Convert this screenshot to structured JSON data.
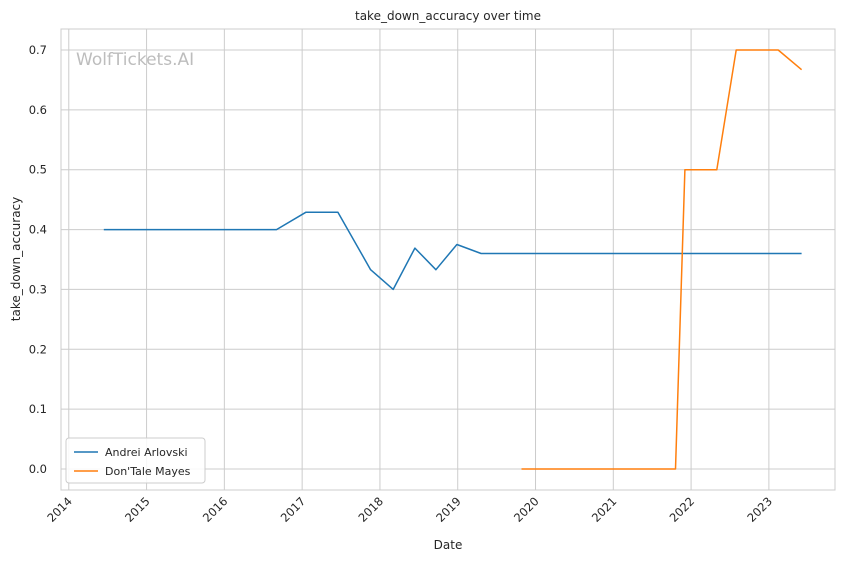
{
  "watermark": "WolfTickets.AI",
  "chart_data": {
    "type": "line",
    "title": "take_down_accuracy over time",
    "xlabel": "Date",
    "ylabel": "take_down_accuracy",
    "xlim": [
      2013.9,
      2023.85
    ],
    "ylim": [
      -0.035,
      0.735
    ],
    "x_ticks": [
      "2014",
      "2015",
      "2016",
      "2017",
      "2018",
      "2019",
      "2020",
      "2021",
      "2022",
      "2023"
    ],
    "y_ticks": [
      "0.0",
      "0.1",
      "0.2",
      "0.3",
      "0.4",
      "0.5",
      "0.6",
      "0.7"
    ],
    "grid": true,
    "legend_position": "lower-left",
    "series": [
      {
        "name": "Andrei Arlovski",
        "color": "#1f77b4",
        "points": [
          [
            2014.45,
            0.4
          ],
          [
            2016.67,
            0.4
          ],
          [
            2017.05,
            0.429
          ],
          [
            2017.46,
            0.429
          ],
          [
            2017.88,
            0.333
          ],
          [
            2018.17,
            0.3
          ],
          [
            2018.45,
            0.369
          ],
          [
            2018.72,
            0.333
          ],
          [
            2018.99,
            0.375
          ],
          [
            2019.3,
            0.36
          ],
          [
            2023.42,
            0.36
          ]
        ]
      },
      {
        "name": "Don'Tale Mayes",
        "color": "#ff7f0e",
        "points": [
          [
            2019.82,
            0.0
          ],
          [
            2021.8,
            0.0
          ],
          [
            2021.92,
            0.5
          ],
          [
            2022.33,
            0.5
          ],
          [
            2022.58,
            0.7
          ],
          [
            2023.12,
            0.7
          ],
          [
            2023.42,
            0.667
          ]
        ]
      }
    ]
  }
}
